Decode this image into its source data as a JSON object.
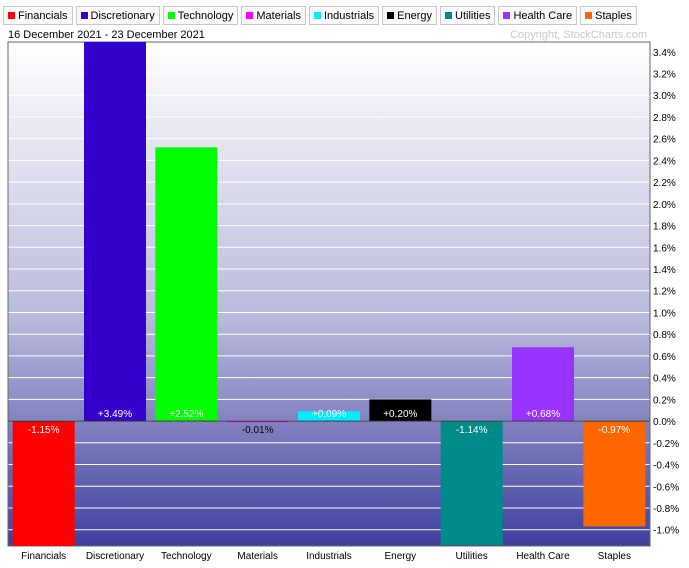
{
  "header": {
    "date_range": "16 December 2021 - 23 December 2021",
    "copyright": "Copyright, StockCharts.com"
  },
  "legend": [
    {
      "label": "Financials",
      "color": "#ff0000"
    },
    {
      "label": "Discretionary",
      "color": "#3300cc"
    },
    {
      "label": "Technology",
      "color": "#00ff00"
    },
    {
      "label": "Materials",
      "color": "#ff00ff"
    },
    {
      "label": "Industrials",
      "color": "#00eeff"
    },
    {
      "label": "Energy",
      "color": "#000000"
    },
    {
      "label": "Utilities",
      "color": "#008b8b"
    },
    {
      "label": "Health Care",
      "color": "#9933ff"
    },
    {
      "label": "Staples",
      "color": "#ff6600"
    }
  ],
  "chart_data": {
    "type": "bar",
    "categories": [
      "Financials",
      "Discretionary",
      "Technology",
      "Materials",
      "Industrials",
      "Energy",
      "Utilities",
      "Health Care",
      "Staples"
    ],
    "values": [
      -1.15,
      3.49,
      2.52,
      -0.01,
      0.09,
      0.2,
      -1.14,
      0.68,
      -0.97
    ],
    "data_labels": [
      "-1.15%",
      "+3.49%",
      "+2.52%",
      "-0.01%",
      "+0.09%",
      "+0.20%",
      "-1.14%",
      "+0.68%",
      "-0.97%"
    ],
    "colors": [
      "#ff0000",
      "#3300cc",
      "#00ff00",
      "#ff00ff",
      "#00eeff",
      "#000000",
      "#008b8b",
      "#9933ff",
      "#ff6600"
    ],
    "ylim": [
      -1.15,
      3.49
    ],
    "y_ticks": [
      3.4,
      3.2,
      3.0,
      2.8,
      2.6,
      2.4,
      2.2,
      2.0,
      1.8,
      1.6,
      1.4,
      1.2,
      1.0,
      0.8,
      0.6,
      0.4,
      0.2,
      0.0,
      -0.2,
      -0.4,
      -0.6,
      -0.8,
      -1.0
    ],
    "y_tick_labels": [
      "3.4%",
      "3.2%",
      "3.0%",
      "2.8%",
      "2.6%",
      "2.4%",
      "2.2%",
      "2.0%",
      "1.8%",
      "1.6%",
      "1.4%",
      "1.2%",
      "1.0%",
      "0.8%",
      "0.6%",
      "0.4%",
      "0.2%",
      "0.0%",
      "-0.2%",
      "-0.4%",
      "-0.6%",
      "-0.8%",
      "-1.0%"
    ],
    "grid": true,
    "y_axis_position": "right",
    "xlabel": "",
    "ylabel": ""
  }
}
